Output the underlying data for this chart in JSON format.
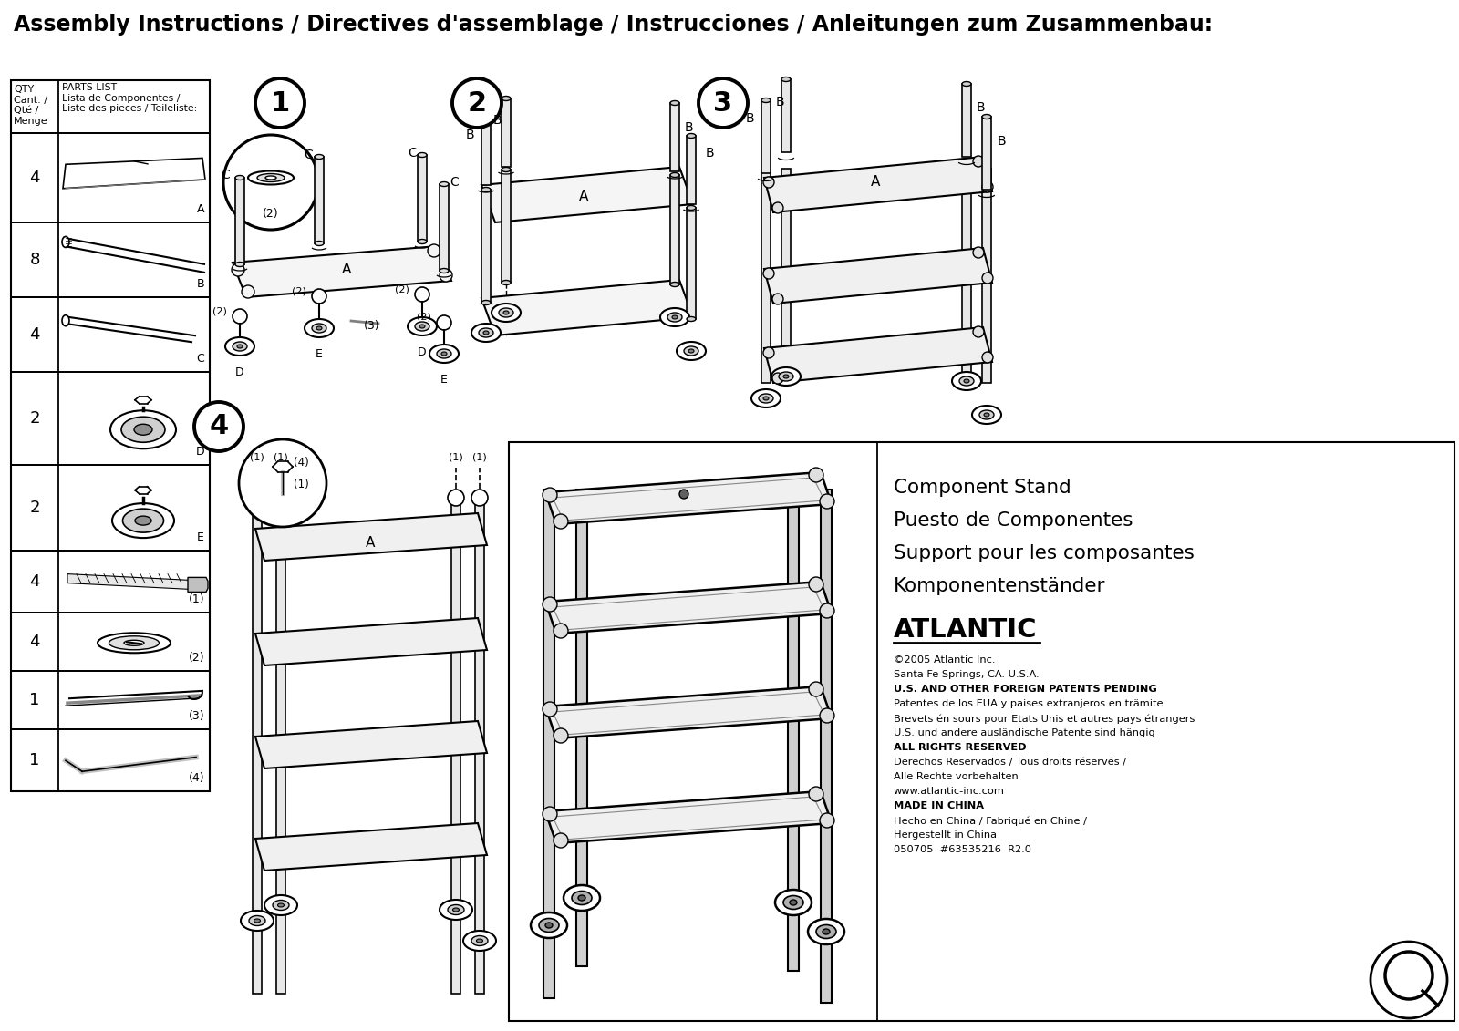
{
  "title": "Assembly Instructions / Directives d'assemblage / Instrucciones / Anleitungen zum Zusammenbau:",
  "background_color": "#ffffff",
  "parts_data": [
    {
      "qty": "4",
      "label": "A"
    },
    {
      "qty": "8",
      "label": "B"
    },
    {
      "qty": "4",
      "label": "C"
    },
    {
      "qty": "2",
      "label": "D"
    },
    {
      "qty": "2",
      "label": "E"
    },
    {
      "qty": "4",
      "label": "(1)"
    },
    {
      "qty": "4",
      "label": "(2)"
    },
    {
      "qty": "1",
      "label": "(3)"
    },
    {
      "qty": "1",
      "label": "(4)"
    }
  ],
  "step_numbers": [
    "1",
    "2",
    "3",
    "4"
  ],
  "product_name_lines": [
    "Component Stand",
    "Puesto de Componentes",
    "Support pour les composantes",
    "Komponentenständer"
  ],
  "brand": "ATLANTIC",
  "copyright_lines": [
    "©2005 Atlantic Inc.",
    "Santa Fe Springs, CA. U.S.A.",
    "U.S. AND OTHER FOREIGN PATENTS PENDING",
    "Patentes de los EUA y paises extranjeros en trämite",
    "Brevets én sours pour Etats Unis et autres pays étrangers",
    "U.S. und andere ausländische Patente sind hängig",
    "ALL RIGHTS RESERVED",
    "Derechos Reservados / Tous droits réservés /",
    "Alle Rechte vorbehalten",
    "www.atlantic-inc.com",
    "MADE IN CHINA",
    "Hecho en China / Fabriqué en Chine /",
    "Hergestellt in China",
    "050705  #63535216  R2.0"
  ]
}
